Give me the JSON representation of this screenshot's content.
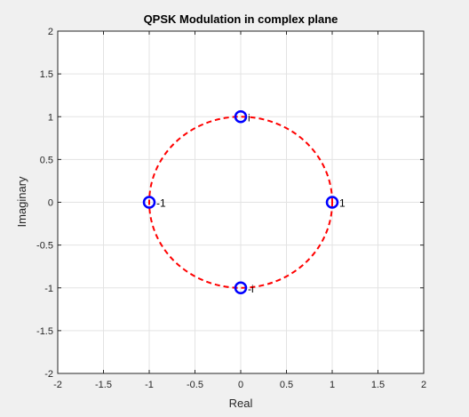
{
  "chart_data": {
    "type": "scatter",
    "title": "QPSK Modulation in complex plane",
    "xlabel": "Real",
    "ylabel": "Imaginary",
    "xlim": [
      -2,
      2
    ],
    "ylim": [
      -2,
      2
    ],
    "xticks": [
      -2,
      -1.5,
      -1,
      -0.5,
      0,
      0.5,
      1,
      1.5,
      2
    ],
    "xtick_labels": [
      "-2",
      "-1.5",
      "-1",
      "-0.5",
      "0",
      "0.5",
      "1",
      "1.5",
      "2"
    ],
    "yticks": [
      -2,
      -1.5,
      -1,
      -0.5,
      0,
      0.5,
      1,
      1.5,
      2
    ],
    "ytick_labels": [
      "-2",
      "-1.5",
      "-1",
      "-0.5",
      "0",
      "0.5",
      "1",
      "1.5",
      "2"
    ],
    "grid": true,
    "series": [
      {
        "kind": "points",
        "marker": "circle",
        "color": "#0000ff",
        "points": [
          {
            "x": 1,
            "y": 0,
            "label": "1"
          },
          {
            "x": 0,
            "y": 1,
            "label": "i"
          },
          {
            "x": -1,
            "y": 0,
            "label": "-1"
          },
          {
            "x": 0,
            "y": -1,
            "label": "-i"
          }
        ]
      },
      {
        "kind": "curve",
        "shape": "unit circle",
        "radius": 1,
        "style": "dashed",
        "color": "#ff0000"
      }
    ]
  },
  "colors": {
    "background": "#f0f0f0",
    "axes_background": "#ffffff",
    "grid": "#e3e3e3",
    "axis_line": "#262626"
  }
}
